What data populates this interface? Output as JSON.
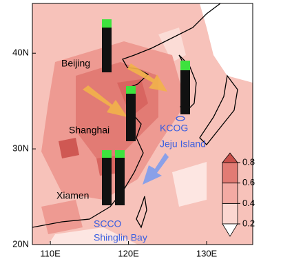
{
  "map": {
    "xlim": [
      107.7,
      135.9
    ],
    "ylim": [
      20,
      45.2
    ],
    "xticks": [
      {
        "value": 110,
        "label": "110E"
      },
      {
        "value": 120,
        "label": "120E"
      },
      {
        "value": 130,
        "label": "130E"
      }
    ],
    "yticks": [
      {
        "value": 20,
        "label": "20N"
      },
      {
        "value": 30,
        "label": "30N"
      },
      {
        "value": 40,
        "label": "40N"
      }
    ],
    "sites": {
      "beijing": "Beijing",
      "shanghai": "Shanghai",
      "xiamen": "Xiamen",
      "kcog": "KCOG",
      "jeju": "Jeju Island",
      "scco": "SCCO",
      "shinglin": "Shinglin Bay"
    }
  },
  "colorbar": {
    "clim": [
      0.2,
      0.8
    ],
    "ticks": [
      0.2,
      0.4,
      0.6,
      0.8
    ]
  }
}
